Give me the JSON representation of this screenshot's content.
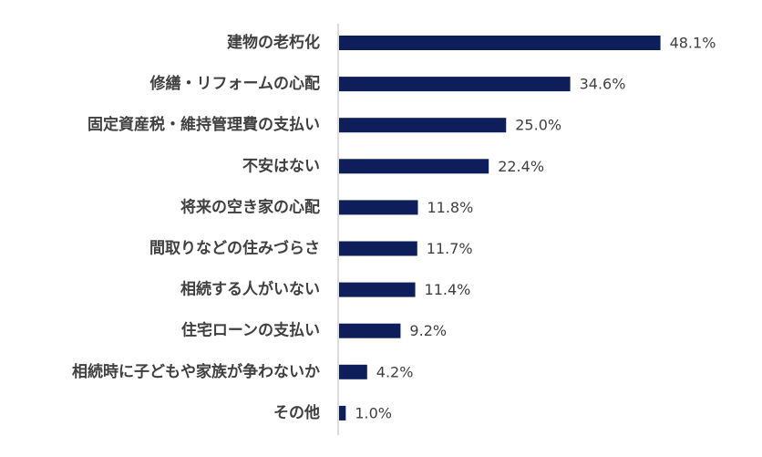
{
  "chart_data": {
    "type": "bar",
    "orientation": "horizontal",
    "categories": [
      "建物の老朽化",
      "修繕・リフォームの心配",
      "固定資産税・維持管理費の支払い",
      "不安はない",
      "将来の空き家の心配",
      "間取りなどの住みづらさ",
      "相続する人がいない",
      "住宅ローンの支払い",
      "相続時に子どもや家族が争わないか",
      "その他"
    ],
    "values": [
      48.1,
      34.6,
      25.0,
      22.4,
      11.8,
      11.7,
      11.4,
      9.2,
      4.2,
      1.0
    ],
    "value_labels": [
      "48.1%",
      "34.6%",
      "25.0%",
      "22.4%",
      "11.8%",
      "11.7%",
      "11.4%",
      "9.2%",
      "4.2%",
      "1.0%"
    ],
    "title": "",
    "xlabel": "",
    "ylabel": "",
    "xlim": [
      0,
      50
    ],
    "grid": false,
    "legend": "none",
    "bar_color": "#0d1e5a"
  }
}
